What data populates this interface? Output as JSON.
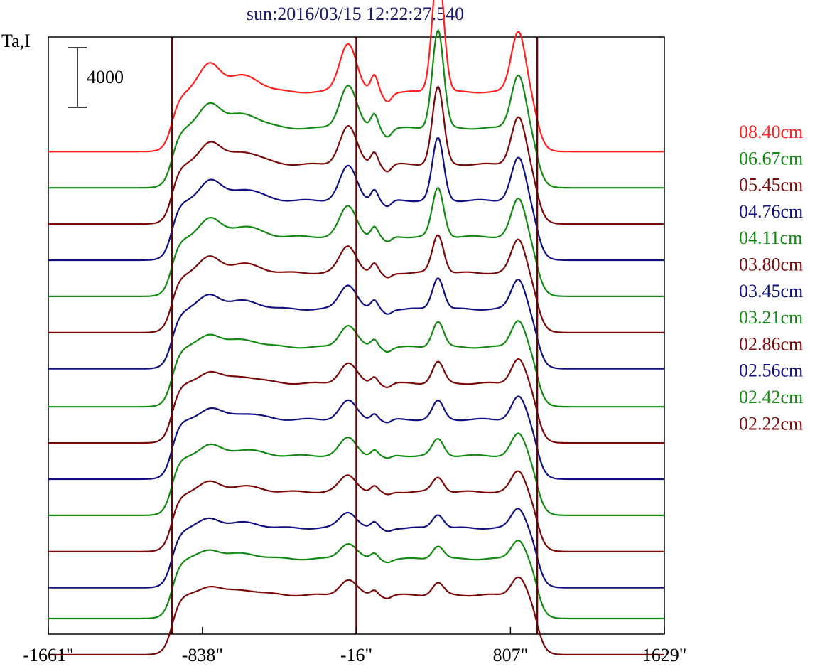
{
  "chart_data": {
    "type": "line",
    "title": "sun:2016/03/15 12:22:27.540",
    "ylabel": "Ta,I",
    "scale_bar_label": "4000",
    "x_tick_labels": [
      "-1661\"",
      "-838\"",
      "-16\"",
      "807\"",
      "1629\""
    ],
    "x_ticks": [
      -1661,
      -838,
      -16,
      807,
      1629
    ],
    "xlim": [
      -1661,
      1629
    ],
    "limb_markers": [
      -1000,
      -16,
      950
    ],
    "ylim_relative": [
      0,
      33000
    ],
    "legend_position": "right",
    "colors": {
      "red": "#ff2020",
      "green": "#148a14",
      "maroon": "#7a0a0a",
      "blue": "#101080",
      "title": "#1a1a6e",
      "axis": "#000000",
      "marker": "#5a0a0a"
    },
    "legend": [
      {
        "label": "08.40cm",
        "color": "#ff2020"
      },
      {
        "label": "06.67cm",
        "color": "#148a14"
      },
      {
        "label": "05.45cm",
        "color": "#7a0a0a"
      },
      {
        "label": "04.76cm",
        "color": "#101080"
      },
      {
        "label": "04.11cm",
        "color": "#148a14"
      },
      {
        "label": "03.80cm",
        "color": "#7a0a0a"
      },
      {
        "label": "03.45cm",
        "color": "#101080"
      },
      {
        "label": "03.21cm",
        "color": "#148a14"
      },
      {
        "label": "02.86cm",
        "color": "#7a0a0a"
      },
      {
        "label": "02.56cm",
        "color": "#101080"
      },
      {
        "label": "02.42cm",
        "color": "#148a14"
      },
      {
        "label": "02.22cm",
        "color": "#7a0a0a"
      }
    ],
    "series": [
      {
        "color": "#ff2020",
        "offset": 25800,
        "amp": 1.0
      },
      {
        "color": "#148a14",
        "offset": 23800,
        "amp": 0.88
      },
      {
        "color": "#7a0a0a",
        "offset": 21800,
        "amp": 0.78
      },
      {
        "color": "#101080",
        "offset": 19800,
        "amp": 0.7
      },
      {
        "color": "#148a14",
        "offset": 17800,
        "amp": 0.62
      },
      {
        "color": "#7a0a0a",
        "offset": 15800,
        "amp": 0.55
      },
      {
        "color": "#101080",
        "offset": 13800,
        "amp": 0.5
      },
      {
        "color": "#148a14",
        "offset": 11700,
        "amp": 0.45
      },
      {
        "color": "#7a0a0a",
        "offset": 9700,
        "amp": 0.41
      },
      {
        "color": "#101080",
        "offset": 7700,
        "amp": 0.38
      },
      {
        "color": "#148a14",
        "offset": 5700,
        "amp": 0.36
      },
      {
        "color": "#7a0a0a",
        "offset": 3700,
        "amp": 0.34
      },
      {
        "color": "#101080",
        "offset": 1700,
        "amp": 0.33
      },
      {
        "color": "#148a14",
        "offset": 0,
        "amp": 0.32
      },
      {
        "color": "#7a0a0a",
        "offset": -2000,
        "amp": 0.31
      }
    ]
  }
}
